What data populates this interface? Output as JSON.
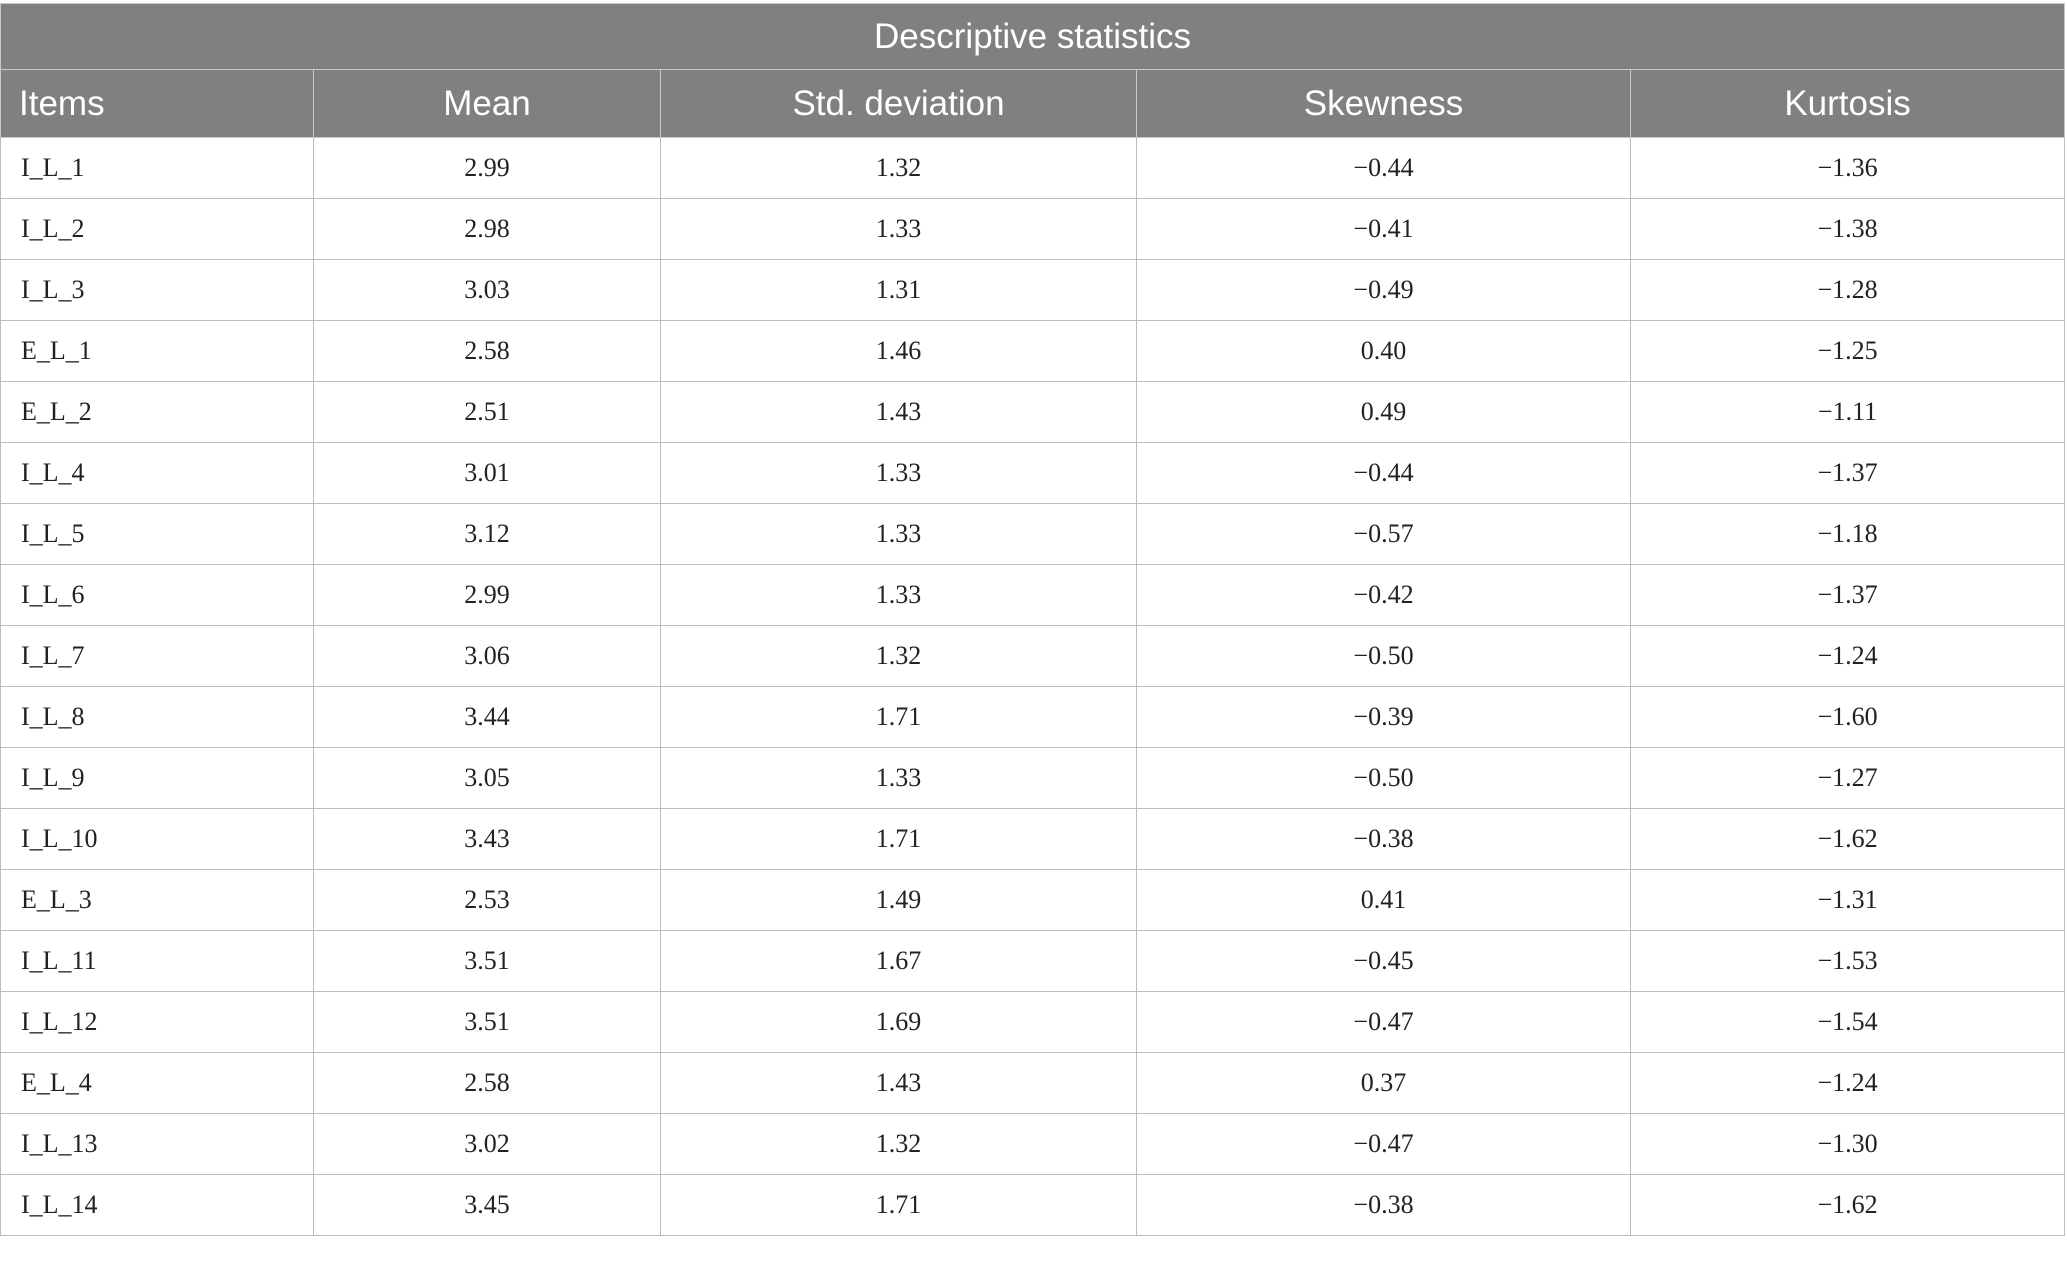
{
  "table": {
    "title": "Descriptive statistics",
    "headers": {
      "items": "Items",
      "mean": "Mean",
      "std": "Std. deviation",
      "skewness": "Skewness",
      "kurtosis": "Kurtosis"
    },
    "rows": [
      {
        "item": "I_L_1",
        "mean": "2.99",
        "std": "1.32",
        "skewness": "−0.44",
        "kurtosis": "−1.36"
      },
      {
        "item": "I_L_2",
        "mean": "2.98",
        "std": "1.33",
        "skewness": "−0.41",
        "kurtosis": "−1.38"
      },
      {
        "item": "I_L_3",
        "mean": "3.03",
        "std": "1.31",
        "skewness": "−0.49",
        "kurtosis": "−1.28"
      },
      {
        "item": "E_L_1",
        "mean": "2.58",
        "std": "1.46",
        "skewness": "0.40",
        "kurtosis": "−1.25"
      },
      {
        "item": "E_L_2",
        "mean": "2.51",
        "std": "1.43",
        "skewness": "0.49",
        "kurtosis": "−1.11"
      },
      {
        "item": "I_L_4",
        "mean": "3.01",
        "std": "1.33",
        "skewness": "−0.44",
        "kurtosis": "−1.37"
      },
      {
        "item": "I_L_5",
        "mean": "3.12",
        "std": "1.33",
        "skewness": "−0.57",
        "kurtosis": "−1.18"
      },
      {
        "item": "I_L_6",
        "mean": "2.99",
        "std": "1.33",
        "skewness": "−0.42",
        "kurtosis": "−1.37"
      },
      {
        "item": "I_L_7",
        "mean": "3.06",
        "std": "1.32",
        "skewness": "−0.50",
        "kurtosis": "−1.24"
      },
      {
        "item": "I_L_8",
        "mean": "3.44",
        "std": "1.71",
        "skewness": "−0.39",
        "kurtosis": "−1.60"
      },
      {
        "item": "I_L_9",
        "mean": "3.05",
        "std": "1.33",
        "skewness": "−0.50",
        "kurtosis": "−1.27"
      },
      {
        "item": "I_L_10",
        "mean": "3.43",
        "std": "1.71",
        "skewness": "−0.38",
        "kurtosis": "−1.62"
      },
      {
        "item": "E_L_3",
        "mean": "2.53",
        "std": "1.49",
        "skewness": "0.41",
        "kurtosis": "−1.31"
      },
      {
        "item": "I_L_11",
        "mean": "3.51",
        "std": "1.67",
        "skewness": "−0.45",
        "kurtosis": "−1.53"
      },
      {
        "item": "I_L_12",
        "mean": "3.51",
        "std": "1.69",
        "skewness": "−0.47",
        "kurtosis": "−1.54"
      },
      {
        "item": "E_L_4",
        "mean": "2.58",
        "std": "1.43",
        "skewness": "0.37",
        "kurtosis": "−1.24"
      },
      {
        "item": "I_L_13",
        "mean": "3.02",
        "std": "1.32",
        "skewness": "−0.47",
        "kurtosis": "−1.30"
      },
      {
        "item": "I_L_14",
        "mean": "3.45",
        "std": "1.71",
        "skewness": "−0.38",
        "kurtosis": "−1.62"
      }
    ]
  },
  "colors": {
    "header_background": "#808080",
    "header_text": "#ffffff",
    "grid_lines": "#bcbcbc"
  }
}
